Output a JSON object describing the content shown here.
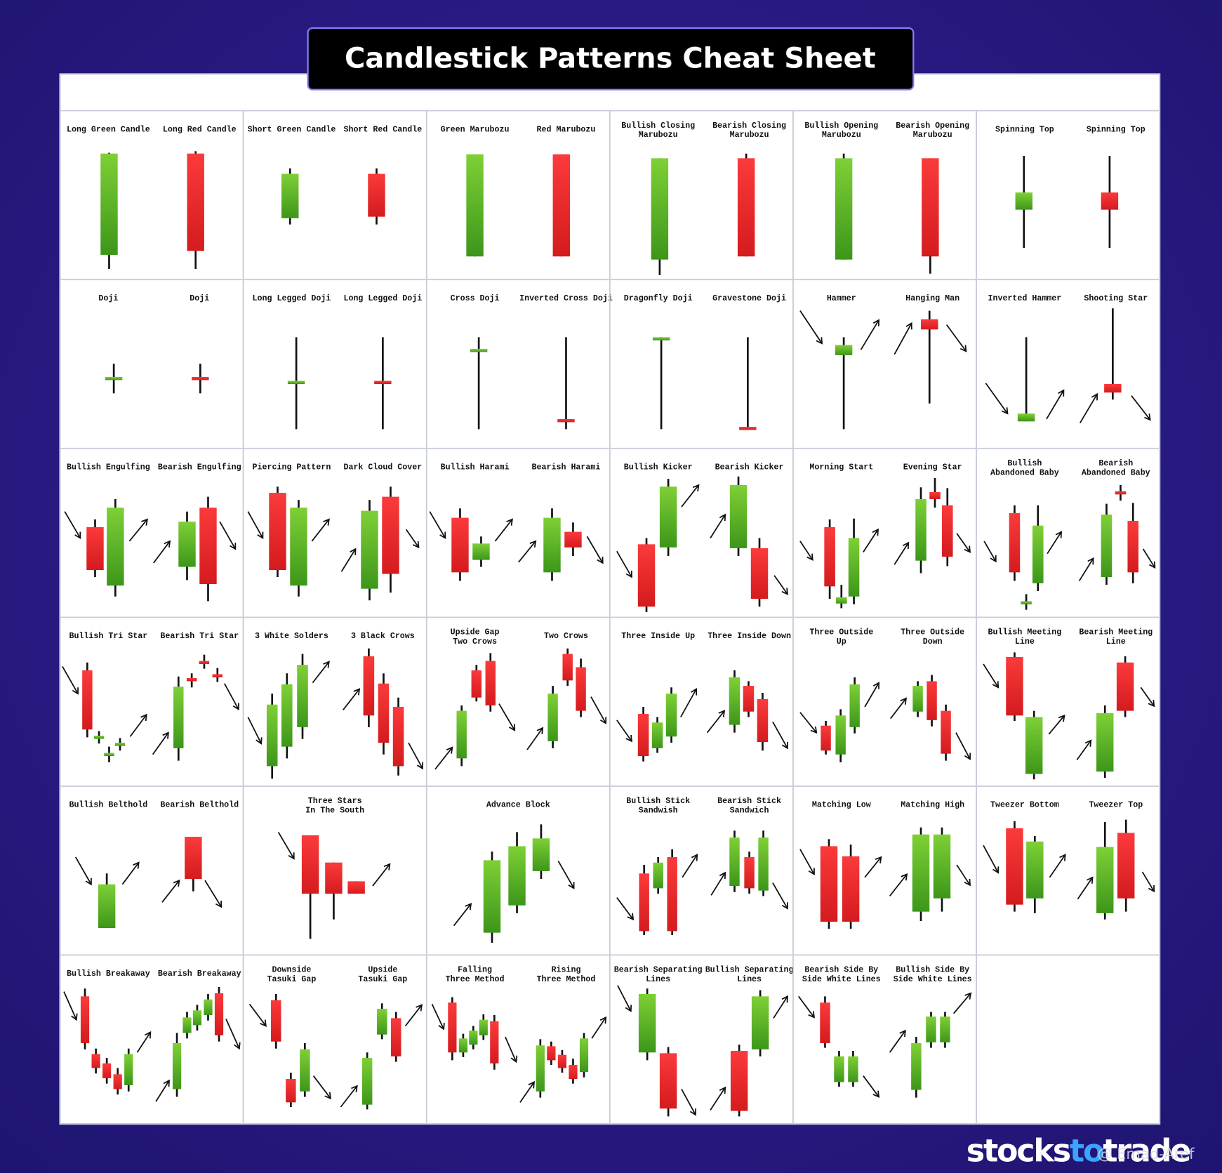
{
  "header": {
    "title": "Candlestick Patterns Cheat Sheet"
  },
  "grid": {
    "cells": [
      {
        "labels": [
          [
            "Long Green Candle"
          ],
          [
            "Long Red Candle"
          ]
        ]
      },
      {
        "labels": [
          [
            "Short Green Candle"
          ],
          [
            "Short Red Candle"
          ]
        ]
      },
      {
        "labels": [
          [
            "Green Marubozu"
          ],
          [
            "Red Marubozu"
          ]
        ]
      },
      {
        "labels": [
          [
            "Bullish Closing",
            "Marubozu"
          ],
          [
            "Bearish Closing",
            "Marubozu"
          ]
        ]
      },
      {
        "labels": [
          [
            "Bullish Opening",
            "Marubozu"
          ],
          [
            "Bearish Opening",
            "Marubozu"
          ]
        ]
      },
      {
        "labels": [
          [
            "Spinning Top"
          ],
          [
            "Spinning Top"
          ]
        ]
      },
      {
        "labels": [
          [
            "Doji"
          ],
          [
            "Doji"
          ]
        ]
      },
      {
        "labels": [
          [
            "Long Legged Doji"
          ],
          [
            "Long Legged Doji"
          ]
        ]
      },
      {
        "labels": [
          [
            "Cross Doji"
          ],
          [
            "Inverted Cross Doji"
          ]
        ]
      },
      {
        "labels": [
          [
            "Dragonfly Doji"
          ],
          [
            "Gravestone Doji"
          ]
        ]
      },
      {
        "labels": [
          [
            "Hammer"
          ],
          [
            "Hanging Man"
          ]
        ]
      },
      {
        "labels": [
          [
            "Inverted Hammer"
          ],
          [
            "Shooting Star"
          ]
        ]
      },
      {
        "labels": [
          [
            "Bullish Engulfing"
          ],
          [
            "Bearish Engulfing"
          ]
        ]
      },
      {
        "labels": [
          [
            "Piercing Pattern"
          ],
          [
            "Dark Cloud Cover"
          ]
        ]
      },
      {
        "labels": [
          [
            "Bullish Harami"
          ],
          [
            "Bearish Harami"
          ]
        ]
      },
      {
        "labels": [
          [
            "Bullish Kicker"
          ],
          [
            "Bearish Kicker"
          ]
        ]
      },
      {
        "labels": [
          [
            "Morning Start"
          ],
          [
            "Evening Star"
          ]
        ]
      },
      {
        "labels": [
          [
            "Bullish",
            "Abandoned Baby"
          ],
          [
            "Bearish",
            "Abandoned Baby"
          ]
        ]
      },
      {
        "labels": [
          [
            "Bullish Tri Star"
          ],
          [
            "Bearish Tri Star"
          ]
        ]
      },
      {
        "labels": [
          [
            "3 White Solders"
          ],
          [
            "3 Black Crows"
          ]
        ]
      },
      {
        "labels": [
          [
            "Upside Gap",
            "Two Crows"
          ],
          [
            "Two Crows"
          ]
        ]
      },
      {
        "labels": [
          [
            "Three Inside Up"
          ],
          [
            "Three Inside Down"
          ]
        ]
      },
      {
        "labels": [
          [
            "Three Outside",
            "Up"
          ],
          [
            "Three Outside",
            "Down"
          ]
        ]
      },
      {
        "labels": [
          [
            "Bullish Meeting",
            "Line"
          ],
          [
            "Bearish Meeting",
            "Line"
          ]
        ]
      },
      {
        "labels": [
          [
            "Bullish Belthold"
          ],
          [
            "Bearish Belthold"
          ]
        ]
      },
      {
        "labels": [
          [
            "Three Stars",
            "In The South"
          ]
        ]
      },
      {
        "labels": [
          [
            "Advance Block"
          ]
        ]
      },
      {
        "labels": [
          [
            "Bullish Stick",
            "Sandwish"
          ],
          [
            "Bearish Stick",
            "Sandwich"
          ]
        ]
      },
      {
        "labels": [
          [
            "Matching Low"
          ],
          [
            "Matching High"
          ]
        ]
      },
      {
        "labels": [
          [
            "Tweezer Bottom"
          ],
          [
            "Tweezer Top"
          ]
        ]
      },
      {
        "labels": [
          [
            "Bullish Breakaway"
          ],
          [
            "Bearish Breakaway"
          ]
        ]
      },
      {
        "labels": [
          [
            "Downside",
            "Tasuki Gap"
          ],
          [
            "Upside",
            "Tasuki Gap"
          ]
        ]
      },
      {
        "labels": [
          [
            "Falling",
            "Three Method"
          ],
          [
            "Rising",
            "Three Method"
          ]
        ]
      },
      {
        "labels": [
          [
            "Bearish Separating",
            "Lines"
          ],
          [
            "Bullish Separating",
            "Lines"
          ]
        ]
      },
      {
        "labels": [
          [
            "Bearish Side By",
            "Side White Lines"
          ],
          [
            "Bullish Side By",
            "Side White Lines"
          ]
        ]
      },
      {
        "labels": []
      }
    ]
  },
  "footer": {
    "brand": [
      "stocks",
      "to",
      "trade"
    ],
    "watermark": "@ Emad-Aref"
  }
}
